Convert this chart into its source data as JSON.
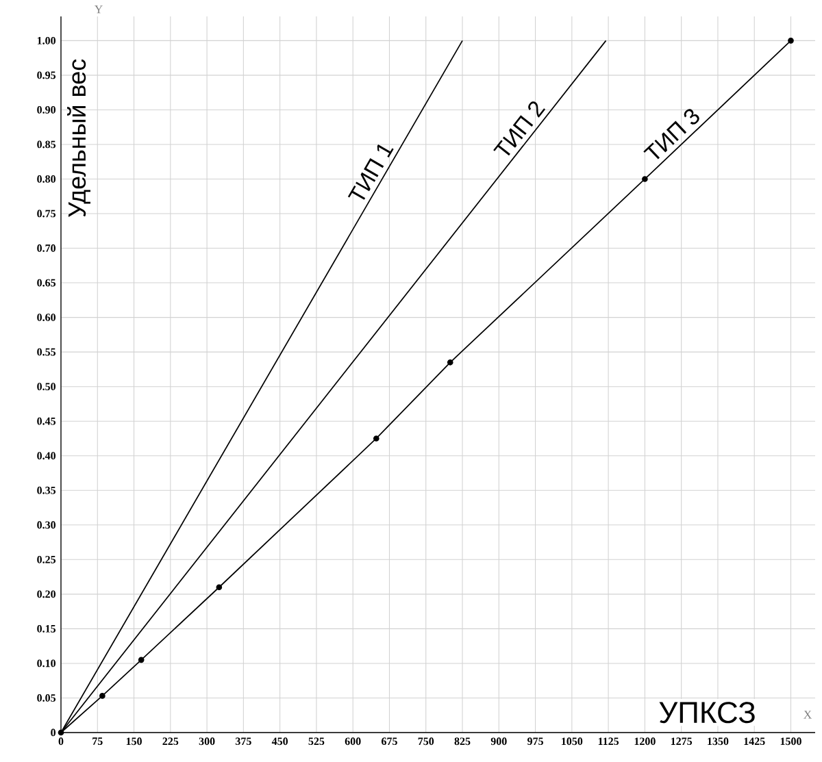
{
  "chart_data": {
    "type": "line",
    "xlabel": "УПКСЗ",
    "ylabel": "Удельный вес",
    "annotations": [
      "Y",
      "X"
    ],
    "xlim": [
      0,
      1550
    ],
    "ylim": [
      0,
      1.035
    ],
    "xticks": [
      0,
      75,
      150,
      225,
      300,
      375,
      450,
      525,
      600,
      675,
      750,
      825,
      900,
      975,
      1050,
      1125,
      1200,
      1275,
      1350,
      1425,
      1500
    ],
    "yticks": [
      0,
      0.05,
      {
        "value": 0.1,
        "label": "0.10"
      },
      0.15,
      {
        "value": 0.2,
        "label": "0.20"
      },
      0.25,
      {
        "value": 0.3,
        "label": "0.30"
      },
      0.35,
      {
        "value": 0.4,
        "label": "0.40"
      },
      0.45,
      {
        "value": 0.5,
        "label": "0.50"
      },
      0.55,
      {
        "value": 0.6,
        "label": "0.60"
      },
      0.65,
      {
        "value": 0.7,
        "label": "0.70"
      },
      0.75,
      {
        "value": 0.8,
        "label": "0.80"
      },
      0.85,
      {
        "value": 0.9,
        "label": "0.90"
      },
      0.95,
      {
        "value": 1,
        "label": "1.00"
      }
    ],
    "grid": true,
    "line_style": "solid",
    "series": [
      {
        "name": "ТИП 1",
        "color": "#000000",
        "marker": "none",
        "x": [
          0,
          825
        ],
        "values": [
          0,
          1
        ]
      },
      {
        "name": "ТИП 2",
        "color": "#000000",
        "marker": "none",
        "x": [
          0,
          1120
        ],
        "values": [
          0,
          1
        ]
      },
      {
        "name": "ТИП 3",
        "color": "#000000",
        "marker": "circle",
        "x": [
          0,
          85,
          165,
          325,
          648,
          800,
          1200,
          1500
        ],
        "values": [
          0,
          0.053,
          0.105,
          0.21,
          0.425,
          0.535,
          0.8,
          1
        ]
      }
    ]
  }
}
